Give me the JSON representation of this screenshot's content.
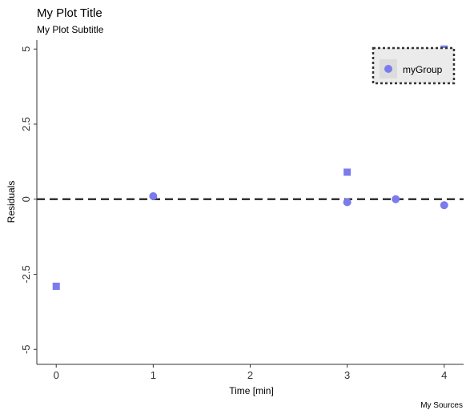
{
  "chart_data": {
    "type": "scatter",
    "title": "My Plot Title",
    "subtitle": "My Plot Subtitle",
    "xlabel": "Time [min]",
    "ylabel": "Residuals",
    "caption": "My Sources",
    "xlim": [
      -0.2,
      4.2
    ],
    "ylim": [
      -5.5,
      5.3
    ],
    "x_ticks": [
      0,
      1,
      2,
      3,
      4
    ],
    "x_tick_labels": [
      "0",
      "1",
      "2",
      "3",
      "4"
    ],
    "y_ticks": [
      5,
      2.5,
      0,
      -2.5,
      -5
    ],
    "y_tick_labels": [
      "5",
      "2.5",
      "0",
      "-2.5",
      "-5"
    ],
    "grid": false,
    "reference_line": {
      "y": 0,
      "style": "dashed"
    },
    "series": [
      {
        "name": "myGroup",
        "marker": "circle",
        "color": "#7b7bee",
        "points": [
          {
            "x": 1,
            "y": 0.1
          },
          {
            "x": 3,
            "y": -0.1
          },
          {
            "x": 3.5,
            "y": 0.0
          },
          {
            "x": 4,
            "y": -0.2
          }
        ]
      },
      {
        "marker": "square",
        "color": "#7b7bee",
        "points": [
          {
            "x": 0,
            "y": -2.9
          },
          {
            "x": 3,
            "y": 0.9
          },
          {
            "x": 4,
            "y": 5.0
          }
        ]
      }
    ],
    "legend": {
      "position": "top-right",
      "entries": [
        {
          "label": "myGroup",
          "marker": "circle",
          "color": "#7b7bee"
        }
      ]
    }
  }
}
